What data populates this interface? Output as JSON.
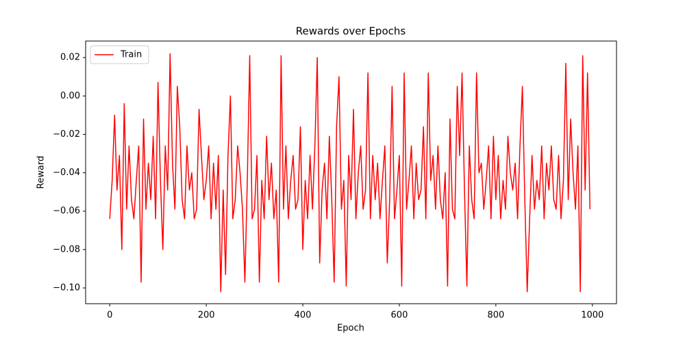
{
  "chart_data": {
    "type": "line",
    "title": "Rewards over Epochs",
    "xlabel": "Epoch",
    "ylabel": "Reward",
    "x": [
      0,
      5,
      10,
      15,
      20,
      25,
      30,
      35,
      40,
      45,
      50,
      55,
      60,
      65,
      70,
      75,
      80,
      85,
      90,
      95,
      100,
      105,
      110,
      115,
      120,
      125,
      130,
      135,
      140,
      145,
      150,
      155,
      160,
      165,
      170,
      175,
      180,
      185,
      190,
      195,
      200,
      205,
      210,
      215,
      220,
      225,
      230,
      235,
      240,
      245,
      250,
      255,
      260,
      265,
      270,
      275,
      280,
      285,
      290,
      295,
      300,
      305,
      310,
      315,
      320,
      325,
      330,
      335,
      340,
      345,
      350,
      355,
      360,
      365,
      370,
      375,
      380,
      385,
      390,
      395,
      400,
      405,
      410,
      415,
      420,
      425,
      430,
      435,
      440,
      445,
      450,
      455,
      460,
      465,
      470,
      475,
      480,
      485,
      490,
      495,
      500,
      505,
      510,
      515,
      520,
      525,
      530,
      535,
      540,
      545,
      550,
      555,
      560,
      565,
      570,
      575,
      580,
      585,
      590,
      595,
      600,
      605,
      610,
      615,
      620,
      625,
      630,
      635,
      640,
      645,
      650,
      655,
      660,
      665,
      670,
      675,
      680,
      685,
      690,
      695,
      700,
      705,
      710,
      715,
      720,
      725,
      730,
      735,
      740,
      745,
      750,
      755,
      760,
      765,
      770,
      775,
      780,
      785,
      790,
      795,
      800,
      805,
      810,
      815,
      820,
      825,
      830,
      835,
      840,
      845,
      850,
      855,
      860,
      865,
      870,
      875,
      880,
      885,
      890,
      895,
      900,
      905,
      910,
      915,
      920,
      925,
      930,
      935,
      940,
      945,
      950,
      955,
      960,
      965,
      970,
      975,
      980,
      985,
      990,
      995
    ],
    "series": [
      {
        "name": "Train",
        "color": "#ff0000",
        "values": [
          -0.064,
          -0.044,
          -0.01,
          -0.049,
          -0.031,
          -0.08,
          -0.004,
          -0.059,
          -0.026,
          -0.054,
          -0.064,
          -0.044,
          -0.026,
          -0.097,
          -0.012,
          -0.059,
          -0.035,
          -0.054,
          -0.021,
          -0.064,
          0.007,
          -0.044,
          -0.08,
          -0.026,
          -0.049,
          0.022,
          -0.035,
          -0.059,
          0.005,
          -0.016,
          -0.054,
          -0.064,
          -0.026,
          -0.049,
          -0.04,
          -0.064,
          -0.059,
          -0.007,
          -0.031,
          -0.054,
          -0.044,
          -0.026,
          -0.064,
          -0.035,
          -0.059,
          -0.031,
          -0.102,
          -0.049,
          -0.093,
          -0.031,
          0.0,
          -0.064,
          -0.054,
          -0.026,
          -0.04,
          -0.059,
          -0.097,
          -0.044,
          0.021,
          -0.064,
          -0.059,
          -0.031,
          -0.097,
          -0.044,
          -0.064,
          -0.021,
          -0.054,
          -0.035,
          -0.064,
          -0.049,
          -0.097,
          0.021,
          -0.059,
          -0.026,
          -0.064,
          -0.044,
          -0.031,
          -0.059,
          -0.054,
          -0.016,
          -0.08,
          -0.044,
          -0.064,
          -0.031,
          -0.059,
          -0.026,
          0.02,
          -0.087,
          -0.049,
          -0.035,
          -0.064,
          -0.021,
          -0.054,
          -0.097,
          -0.016,
          0.01,
          -0.059,
          -0.044,
          -0.099,
          -0.031,
          -0.054,
          -0.007,
          -0.064,
          -0.04,
          -0.026,
          -0.059,
          -0.049,
          0.012,
          -0.064,
          -0.031,
          -0.054,
          -0.035,
          -0.064,
          -0.044,
          -0.026,
          -0.087,
          -0.054,
          0.005,
          -0.064,
          -0.049,
          -0.031,
          -0.099,
          0.012,
          -0.059,
          -0.044,
          -0.026,
          -0.064,
          -0.035,
          -0.054,
          -0.049,
          -0.016,
          -0.064,
          0.012,
          -0.044,
          -0.031,
          -0.059,
          -0.026,
          -0.054,
          -0.064,
          -0.04,
          -0.099,
          -0.012,
          -0.059,
          -0.064,
          0.005,
          -0.031,
          0.012,
          -0.049,
          -0.099,
          -0.026,
          -0.054,
          -0.064,
          0.012,
          -0.04,
          -0.035,
          -0.059,
          -0.044,
          -0.026,
          -0.064,
          -0.021,
          -0.054,
          -0.031,
          -0.064,
          -0.044,
          -0.059,
          -0.021,
          -0.04,
          -0.049,
          -0.035,
          -0.064,
          -0.026,
          0.005,
          -0.054,
          -0.102,
          -0.064,
          -0.031,
          -0.059,
          -0.044,
          -0.054,
          -0.026,
          -0.064,
          -0.035,
          -0.049,
          -0.026,
          -0.054,
          -0.059,
          -0.031,
          -0.064,
          -0.044,
          0.017,
          -0.054,
          -0.012,
          -0.04,
          -0.059,
          -0.026,
          -0.102,
          0.021,
          -0.049,
          0.012,
          -0.059
        ]
      }
    ],
    "xlim": [
      -50,
      1050
    ],
    "xticks": [
      0,
      200,
      400,
      600,
      800,
      1000
    ],
    "ylim": [
      -0.1082,
      0.0286
    ],
    "yticks": [
      {
        "value": -0.1,
        "label": "−0.10"
      },
      {
        "value": -0.08,
        "label": "−0.08"
      },
      {
        "value": -0.06,
        "label": "−0.06"
      },
      {
        "value": -0.04,
        "label": "−0.04"
      },
      {
        "value": -0.02,
        "label": "−0.02"
      },
      {
        "value": 0,
        "label": "0.00"
      },
      0.02
    ],
    "grid": false,
    "legend": "upper-left"
  }
}
